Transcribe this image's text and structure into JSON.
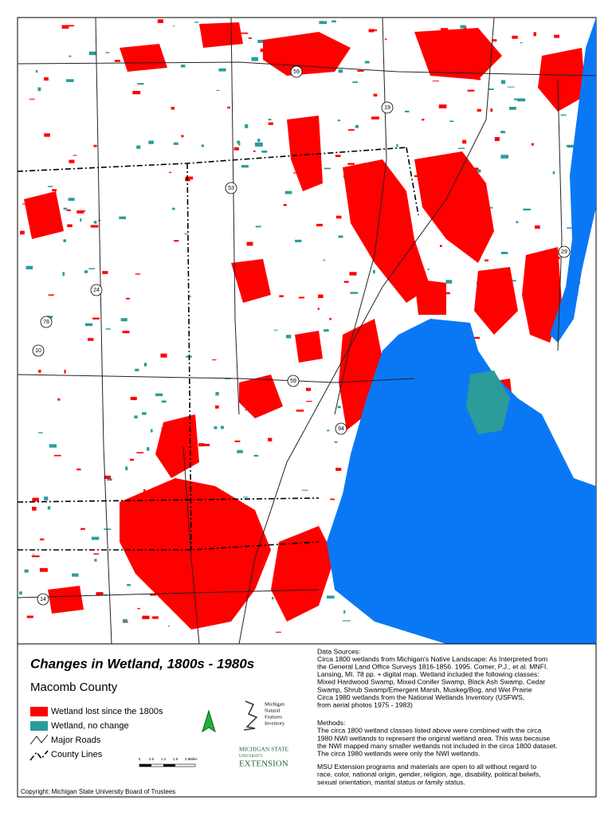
{
  "map": {
    "title": "Changes in Wetland, 1800s - 1980s",
    "county": "Macomb County",
    "legend": [
      "Wetland lost since the 1800s",
      "Wetland, no change",
      "Major Roads",
      "County Lines"
    ],
    "scale": {
      "ticks": [
        "0",
        "0.6",
        "1.2",
        "1.8",
        "2.4"
      ],
      "unit": "Miles"
    },
    "route_labels": [
      "59",
      "19",
      "53",
      "29",
      "24",
      "78",
      "10",
      "59",
      "94",
      "14"
    ]
  },
  "logos": {
    "mnfi": [
      "Michigan",
      "Natural",
      "Features",
      "Inventory"
    ],
    "msu": [
      "MICHIGAN STATE",
      "UNIVERSITY",
      "EXTENSION"
    ]
  },
  "notes": {
    "data_sources_heading": "Data Sources:",
    "data_sources": [
      "Circa 1800 wetlands from Michigan's Native Landscape: As Interpreted from",
      "the General Land Office Surveys 1816-1856.  1995.  Comer, P.J., et al. MNFI.",
      "Lansing, MI. 78 pp. + digital map.  Wetland included the following classes:",
      "Mixed Hardwood Swamp,  Mixed Conifer Swamp, Black Ash Swamp, Cedar",
      "Swamp, Shrub Swamp/Emergent Marsh,  Muskeg/Bog, and Wet Prairie",
      "Circa 1980 wetlands from the National Wetlands Inventory (USFWS,",
      "from aerial photos 1975 - 1983)"
    ],
    "methods_heading": "Methods:",
    "methods": [
      "The circa 1800 wetland classes listed above were combined with the circa",
      "1980 NWI wetlands to represent the original wetland area.  This was because",
      "the NWI mapped many smaller wetlands not included in the circa 1800 dataset.",
      "The circa 1980 wetlands were only the NWI wetlands."
    ],
    "msu_statement": [
      "MSU Extension programs and materials are open to all without regard to",
      "race, color, national origin, gender, religion, age, disability, political beliefs,",
      "sexual orientation, marital status or family status."
    ]
  },
  "copyright": "Copyright: Michigan State University Board of Trustees"
}
